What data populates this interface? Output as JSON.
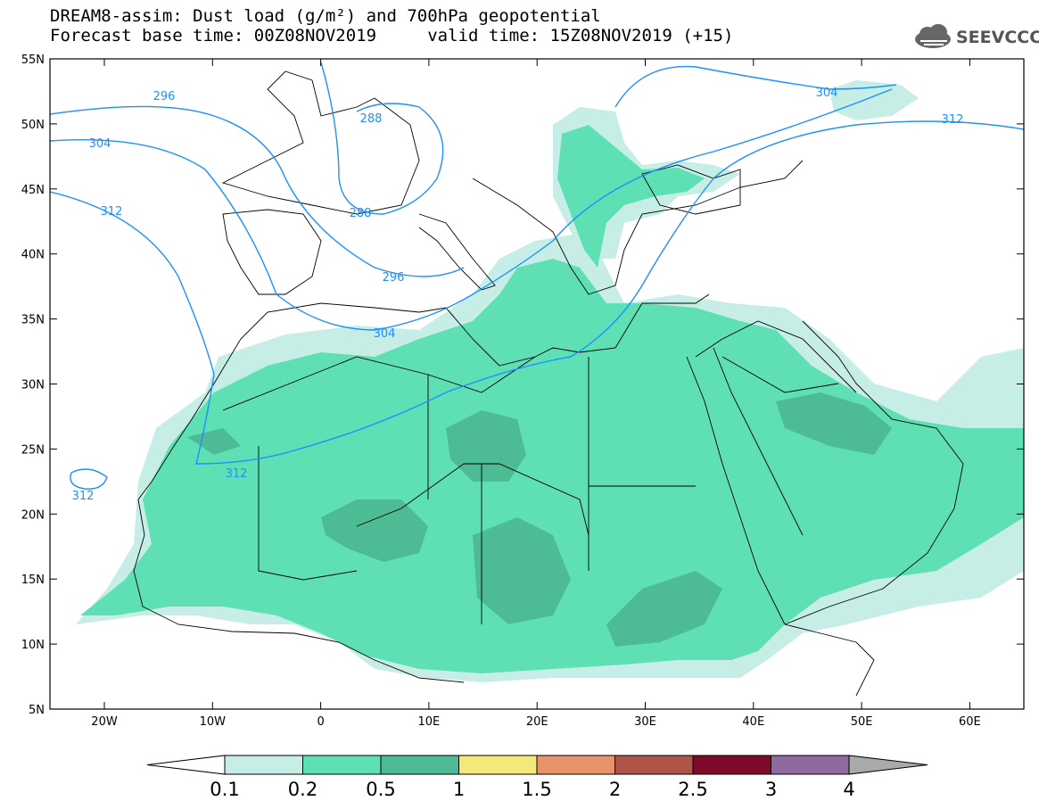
{
  "title_line1": "DREAM8-assim: Dust load (g/m²) and 700hPa geopotential",
  "title_line2": "Forecast base time: 00Z08NOV2019     valid time: 15Z08NOV2019 (+15)",
  "logo_text": "SEEVCCC",
  "lat_labels": [
    "55N",
    "50N",
    "45N",
    "40N",
    "35N",
    "30N",
    "25N",
    "20N",
    "15N",
    "10N",
    "5N"
  ],
  "lon_labels": [
    "20W",
    "10W",
    "0",
    "10E",
    "20E",
    "30E",
    "40E",
    "50E",
    "60E"
  ],
  "colorbar": {
    "labels": [
      "0.1",
      "0.2",
      "0.5",
      "1",
      "1.5",
      "2",
      "2.5",
      "3",
      "4"
    ],
    "colors": [
      "#ffffff",
      "#c6eee6",
      "#5ee0b4",
      "#4dbb94",
      "#f3e87a",
      "#e8936a",
      "#b05448",
      "#7d0a2a",
      "#8f6a9e",
      "#aaaaaa"
    ]
  },
  "contour_labels": [
    "296",
    "304",
    "312",
    "288",
    "288",
    "296",
    "304",
    "312",
    "312",
    "304",
    "312"
  ],
  "colors": {
    "contour": "#1e90ff",
    "dust_light": "#c6eee6",
    "dust_mid": "#5ee0b4",
    "dust_dark": "#4dbb94"
  }
}
